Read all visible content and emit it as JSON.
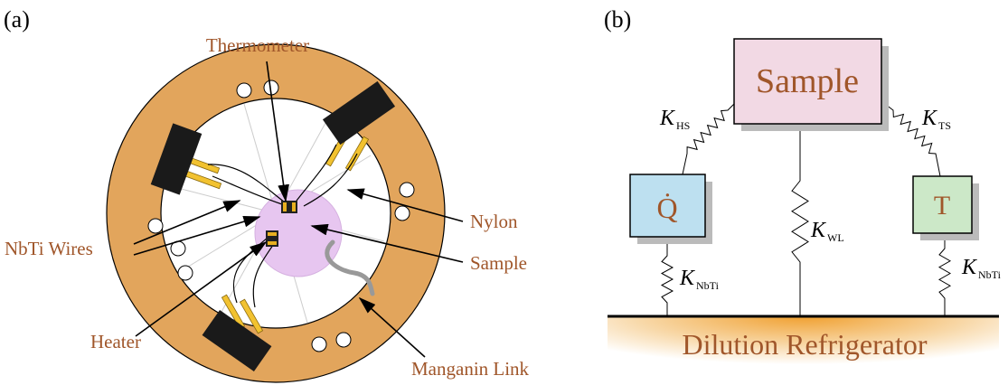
{
  "panel_a": {
    "label": "(a)",
    "annotations": [
      "Thermometer",
      "Nylon",
      "NbTi Wires",
      "Sample",
      "Heater",
      "Manganin Link"
    ]
  },
  "panel_b": {
    "label": "(b)",
    "boxes": [
      "Sample",
      "Q̇",
      "T"
    ],
    "conductances": [
      {
        "symbol": "K",
        "subscript": "HS"
      },
      {
        "symbol": "K",
        "subscript": "TS"
      },
      {
        "symbol": "K",
        "subscript": "WL"
      },
      {
        "symbol": "K",
        "subscript": "NbTi"
      },
      {
        "symbol": "K",
        "subscript": "NbTi"
      }
    ],
    "base": "Dilution Refrigerator"
  }
}
